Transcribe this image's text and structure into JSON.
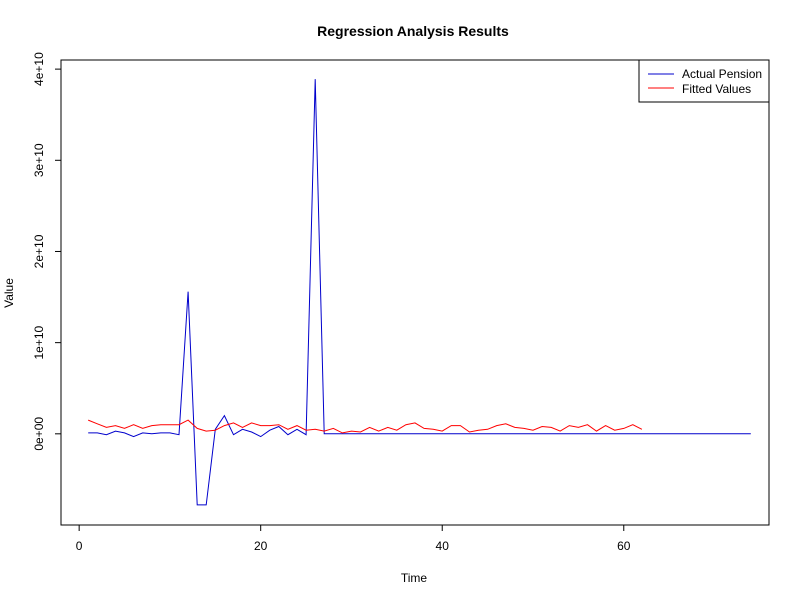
{
  "chart_data": {
    "type": "line",
    "title": "Regression Analysis Results",
    "xlabel": "Time",
    "ylabel": "Value",
    "xlim": [
      -2,
      76
    ],
    "ylim": [
      -10000000000,
      41000000000
    ],
    "x_ticks": [
      0,
      20,
      40,
      60
    ],
    "x_tick_labels": [
      "0",
      "20",
      "40",
      "60"
    ],
    "y_ticks": [
      0,
      10000000000,
      20000000000,
      30000000000,
      40000000000
    ],
    "y_tick_labels": [
      "0e+00",
      "1e+10",
      "2e+10",
      "3e+10",
      "4e+10"
    ],
    "legend_position": "top-right",
    "series": [
      {
        "name": "Actual Pension",
        "color": "#0000cc",
        "x": [
          1,
          2,
          3,
          4,
          5,
          6,
          7,
          8,
          9,
          10,
          11,
          12,
          13,
          14,
          15,
          16,
          17,
          18,
          19,
          20,
          21,
          22,
          23,
          24,
          25,
          26,
          27,
          28,
          29,
          30,
          31,
          32,
          33,
          34,
          35,
          36,
          37,
          38,
          39,
          40,
          41,
          42,
          43,
          44,
          45,
          46,
          47,
          48,
          49,
          50,
          51,
          52,
          53,
          54,
          55,
          56,
          57,
          58,
          59,
          60,
          61,
          62,
          63,
          64,
          65,
          66,
          67,
          68,
          69,
          70,
          71,
          72,
          73,
          74
        ],
        "y": [
          100000000,
          100000000,
          -100000000,
          300000000,
          100000000,
          -300000000,
          100000000,
          0,
          100000000,
          100000000,
          -100000000,
          15600000000,
          -7800000000,
          -7800000000,
          500000000,
          2000000000,
          -100000000,
          500000000,
          200000000,
          -300000000,
          400000000,
          800000000,
          -100000000,
          500000000,
          -100000000,
          38900000000,
          0,
          0,
          0,
          0,
          0,
          0,
          0,
          0,
          0,
          0,
          0,
          0,
          0,
          0,
          0,
          0,
          0,
          0,
          0,
          0,
          0,
          0,
          0,
          0,
          0,
          0,
          0,
          0,
          0,
          0,
          0,
          0,
          0,
          0,
          0,
          0,
          0,
          0,
          0,
          0,
          0,
          0,
          0,
          0,
          0,
          0,
          0,
          0
        ]
      },
      {
        "name": "Fitted Values",
        "color": "#ff0000",
        "x": [
          1,
          2,
          3,
          4,
          5,
          6,
          7,
          8,
          9,
          10,
          11,
          12,
          13,
          14,
          15,
          16,
          17,
          18,
          19,
          20,
          21,
          22,
          23,
          24,
          25,
          26,
          27,
          28,
          29,
          30,
          31,
          32,
          33,
          34,
          35,
          36,
          37,
          38,
          39,
          40,
          41,
          42,
          43,
          44,
          45,
          46,
          47,
          48,
          49,
          50,
          51,
          52,
          53,
          54,
          55,
          56,
          57,
          58,
          59,
          60,
          61,
          62
        ],
        "y": [
          1500000000,
          1100000000,
          700000000,
          900000000,
          600000000,
          1000000000,
          600000000,
          900000000,
          1000000000,
          1000000000,
          1000000000,
          1500000000,
          600000000,
          300000000,
          400000000,
          900000000,
          1200000000,
          700000000,
          1200000000,
          900000000,
          900000000,
          1000000000,
          500000000,
          900000000,
          400000000,
          500000000,
          300000000,
          600000000,
          100000000,
          300000000,
          200000000,
          700000000,
          300000000,
          700000000,
          400000000,
          1000000000,
          1200000000,
          600000000,
          500000000,
          300000000,
          900000000,
          900000000,
          200000000,
          400000000,
          500000000,
          900000000,
          1100000000,
          700000000,
          600000000,
          400000000,
          800000000,
          700000000,
          300000000,
          900000000,
          700000000,
          1000000000,
          300000000,
          900000000,
          400000000,
          600000000,
          1000000000,
          500000000
        ]
      }
    ]
  }
}
